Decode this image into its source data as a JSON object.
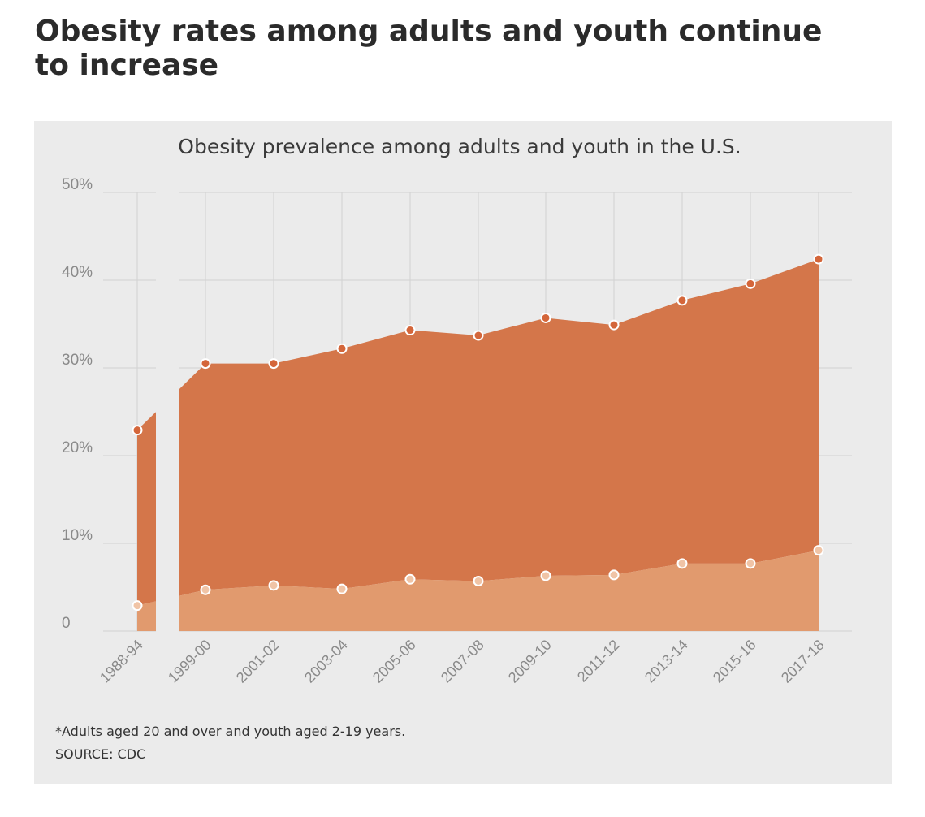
{
  "headline": "Obesity rates among adults and youth continue to increase",
  "footnote": "*Adults aged 20 and over and youth aged 2-19 years.",
  "source": "SOURCE: CDC",
  "colors": {
    "adults_area": "#d4764a",
    "youth_area": "#e19a6e",
    "background": "#ebebeb",
    "marker_fill_adults": "#d4663a",
    "marker_fill_youth": "#f0c4a6"
  },
  "chart_data": {
    "type": "area",
    "title": "Obesity prevalence among adults and youth in the U.S.",
    "xlabel": "",
    "ylabel": "",
    "categories": [
      "1988-94",
      "1999-00",
      "2001-02",
      "2003-04",
      "2005-06",
      "2007-08",
      "2009-10",
      "2011-12",
      "2013-14",
      "2015-16",
      "2017-18"
    ],
    "yticks": [
      "0",
      "10%",
      "20%",
      "30%",
      "40%",
      "50%"
    ],
    "ylim": [
      0,
      50
    ],
    "grid": true,
    "break_between": [
      "1988-94",
      "1999-00"
    ],
    "series": [
      {
        "values": [
          22.9,
          30.5,
          30.5,
          32.2,
          34.3,
          33.7,
          35.7,
          34.9,
          37.7,
          39.6,
          42.4
        ]
      },
      {
        "values": [
          2.9,
          4.7,
          5.2,
          4.8,
          5.9,
          5.7,
          6.3,
          6.4,
          7.7,
          7.7,
          9.2
        ]
      }
    ]
  }
}
